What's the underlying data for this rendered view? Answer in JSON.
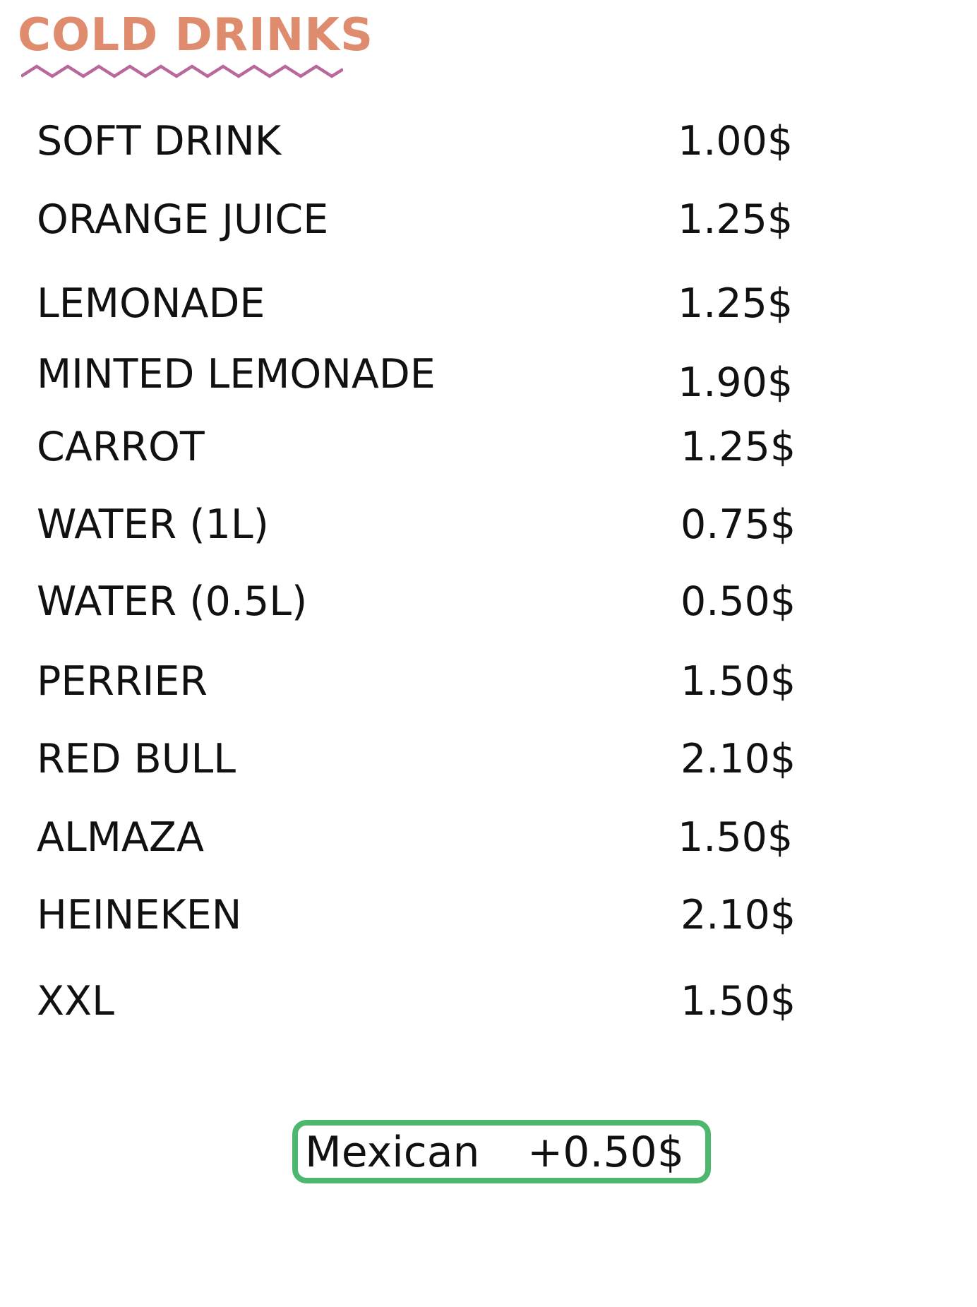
{
  "title": "COLD DRINKS",
  "colors": {
    "title": "#df8c6e",
    "zigzag": "#b8689a",
    "addon_border": "#4db76f",
    "text": "#111111"
  },
  "items": [
    {
      "name": "SOFT DRINK",
      "price": "1.00$"
    },
    {
      "name": "ORANGE JUICE",
      "price": "1.25$"
    },
    {
      "name": "LEMONADE",
      "price": "1.25$"
    },
    {
      "name": "MINTED LEMONADE",
      "price": "1.90$"
    },
    {
      "name": "CARROT",
      "price": "1.25$"
    },
    {
      "name": "WATER (1L)",
      "price": "0.75$"
    },
    {
      "name": "WATER (0.5L)",
      "price": "0.50$"
    },
    {
      "name": "PERRIER",
      "price": "1.50$"
    },
    {
      "name": "RED BULL",
      "price": "2.10$"
    },
    {
      "name": "ALMAZA",
      "price": "1.50$"
    },
    {
      "name": "HEINEKEN",
      "price": "2.10$"
    },
    {
      "name": "XXL",
      "price": "1.50$"
    }
  ],
  "addon": {
    "name": "Mexican",
    "price": "+0.50$"
  }
}
